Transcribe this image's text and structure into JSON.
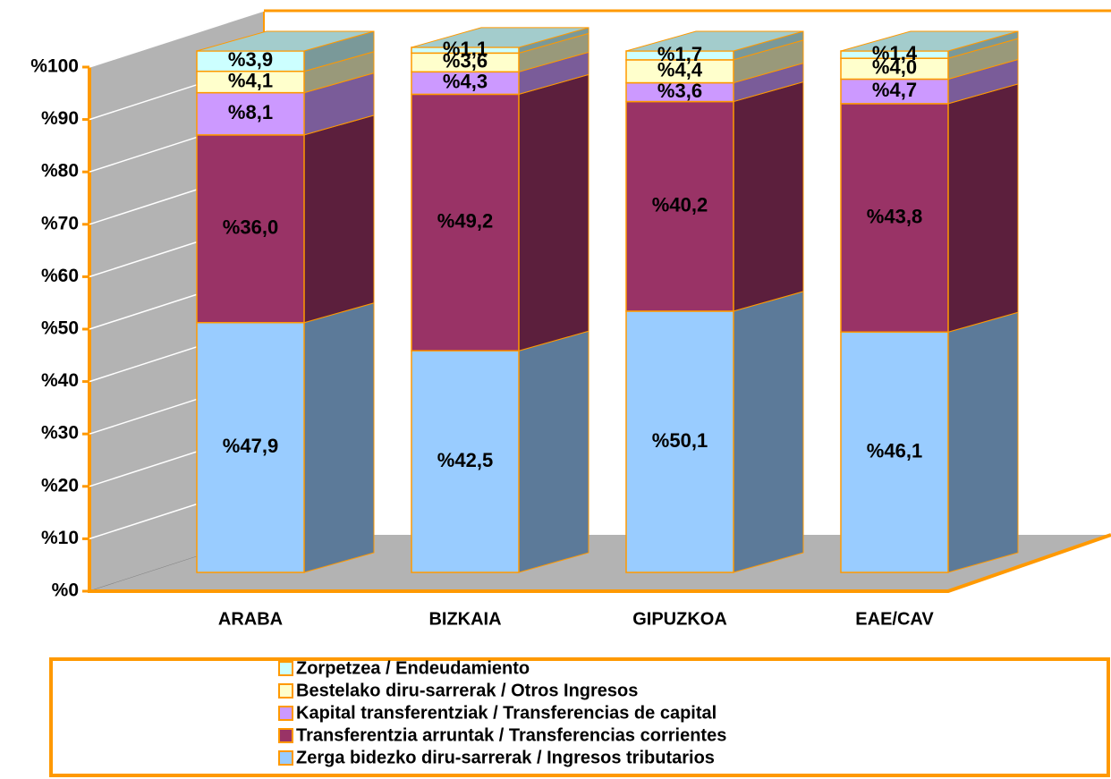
{
  "chart_data": {
    "type": "bar3d_stacked",
    "categories": [
      "ARABA",
      "BIZKAIA",
      "GIPUZKOA",
      "EAE/CAV"
    ],
    "series": [
      {
        "name": "Zerga bidezko diru-sarrerak / Ingresos tributarios",
        "color": "#99ccff",
        "values": [
          47.9,
          42.5,
          50.1,
          46.1
        ],
        "value_labels": [
          "%47,9",
          "%42,5",
          "%50,1",
          "%46,1"
        ]
      },
      {
        "name": "Transferentzia arruntak / Transferencias corrientes",
        "color": "#993366",
        "values": [
          36.0,
          49.2,
          40.2,
          43.8
        ],
        "value_labels": [
          "%36,0",
          "%49,2",
          "%40,2",
          "%43,8"
        ]
      },
      {
        "name": "Kapital transferentziak / Transferencias de capital",
        "color": "#cc99ff",
        "values": [
          8.1,
          4.3,
          3.6,
          4.7
        ],
        "value_labels": [
          "%8,1",
          "%4,3",
          "%3,6",
          "%4,7"
        ]
      },
      {
        "name": "Bestelako diru-sarrerak / Otros Ingresos",
        "color": "#ffffcc",
        "values": [
          4.1,
          3.6,
          4.4,
          4.0
        ],
        "value_labels": [
          "%4,1",
          "%3,6",
          "%4,4",
          "%4,0"
        ]
      },
      {
        "name": "Zorpetzea / Endeudamiento",
        "color": "#ccffff",
        "values": [
          3.9,
          1.1,
          1.7,
          1.4
        ],
        "value_labels": [
          "%3,9",
          "%1,1",
          "%1,7",
          "%1,4"
        ]
      }
    ],
    "ylim": [
      0,
      100
    ],
    "yticks": [
      {
        "value": 0,
        "label": "%0"
      },
      {
        "value": 10,
        "label": "%10"
      },
      {
        "value": 20,
        "label": "%20"
      },
      {
        "value": 30,
        "label": "%30"
      },
      {
        "value": 40,
        "label": "%40"
      },
      {
        "value": 50,
        "label": "%50"
      },
      {
        "value": 60,
        "label": "%60"
      },
      {
        "value": 70,
        "label": "%70"
      },
      {
        "value": 80,
        "label": "%80"
      },
      {
        "value": 90,
        "label": "%90"
      },
      {
        "value": 100,
        "label": "%100"
      }
    ],
    "grid": true,
    "legend": "bottom"
  }
}
